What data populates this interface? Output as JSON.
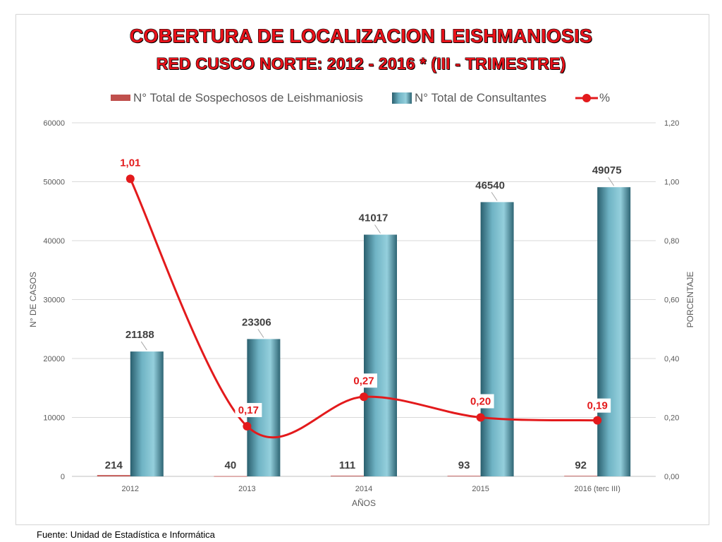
{
  "title_line1": "COBERTURA DE LOCALIZACION  LEISHMANIOSIS",
  "title_line2": "RED CUSCO NORTE: 2012 - 2016 * (III - TRIMESTRE)",
  "source": "Fuente: Unidad de Estadística e Informática",
  "colors": {
    "title": "#e8121a",
    "suspects_bar": "#c0504d",
    "consultants_bar": "#4f9aab",
    "percent_line": "#e31a1c"
  },
  "chart_data": {
    "type": "bar",
    "categories": [
      "2012",
      "2013",
      "2014",
      "2015",
      "2016 (terc III)"
    ],
    "series": [
      {
        "name": "N° Total de Sospechosos de Leishmaniosis",
        "type": "bar",
        "axis": "left",
        "values": [
          214,
          40,
          111,
          93,
          92
        ],
        "labels": [
          "214",
          "40",
          "111",
          "93",
          "92"
        ]
      },
      {
        "name": "N° Total de Consultantes",
        "type": "bar",
        "axis": "left",
        "values": [
          21188,
          23306,
          41017,
          46540,
          49075
        ],
        "labels": [
          "21188",
          "23306",
          "41017",
          "46540",
          "49075"
        ]
      },
      {
        "name": "%",
        "type": "line",
        "axis": "right",
        "values": [
          1.01,
          0.17,
          0.27,
          0.2,
          0.19
        ],
        "labels": [
          "1,01",
          "0,17",
          "0,27",
          "0,20",
          "0,19"
        ]
      }
    ],
    "xlabel": "AÑOS",
    "ylabel": "N° DE CASOS",
    "y2label": "PORCENTAJE",
    "ylim": [
      0,
      60000
    ],
    "y2lim": [
      0,
      1.2
    ],
    "yticks": [
      "0",
      "10000",
      "20000",
      "30000",
      "40000",
      "50000",
      "60000"
    ],
    "y2ticks": [
      "0,00",
      "0,20",
      "0,40",
      "0,60",
      "0,80",
      "1,00",
      "1,20"
    ],
    "grid": true,
    "legend_position": "top"
  }
}
